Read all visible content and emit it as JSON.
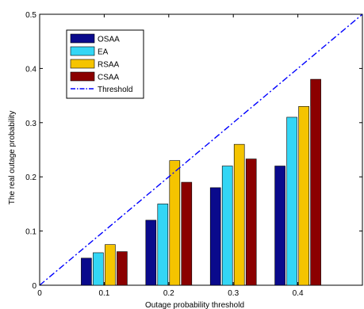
{
  "chart_data": {
    "type": "bar",
    "xlabel": "Outage probability threshold",
    "ylabel": "The real outage probability",
    "categories": [
      "0.1",
      "0.2",
      "0.3",
      "0.4"
    ],
    "x_values": [
      0.1,
      0.2,
      0.3,
      0.4
    ],
    "xlim": [
      0,
      0.5
    ],
    "ylim": [
      0,
      0.5
    ],
    "x_ticks": [
      {
        "value": 0,
        "label": "0"
      },
      {
        "value": 0.1,
        "label": "0.1"
      },
      {
        "value": 0.2,
        "label": "0.2"
      },
      {
        "value": 0.3,
        "label": "0.3"
      },
      {
        "value": 0.4,
        "label": "0.4"
      }
    ],
    "y_ticks": [
      {
        "value": 0,
        "label": "0"
      },
      {
        "value": 0.1,
        "label": "0.1"
      },
      {
        "value": 0.2,
        "label": "0.2"
      },
      {
        "value": 0.3,
        "label": "0.3"
      },
      {
        "value": 0.4,
        "label": "0.4"
      },
      {
        "value": 0.5,
        "label": "0.5"
      }
    ],
    "series": [
      {
        "name": "OSAA",
        "color": "#0a0a8c",
        "values": [
          0.05,
          0.12,
          0.18,
          0.22
        ]
      },
      {
        "name": "EA",
        "color": "#33d6f5",
        "values": [
          0.06,
          0.15,
          0.22,
          0.31
        ]
      },
      {
        "name": "RSAA",
        "color": "#f5c400",
        "values": [
          0.075,
          0.23,
          0.26,
          0.33
        ]
      },
      {
        "name": "CSAA",
        "color": "#8b0000",
        "values": [
          0.062,
          0.19,
          0.233,
          0.38
        ]
      }
    ],
    "threshold_line": {
      "name": "Threshold",
      "color": "#0000ff",
      "style": "dash-dot",
      "from": [
        0,
        0
      ],
      "to": [
        0.5,
        0.5
      ]
    },
    "grid": false,
    "legend": "top-left"
  }
}
